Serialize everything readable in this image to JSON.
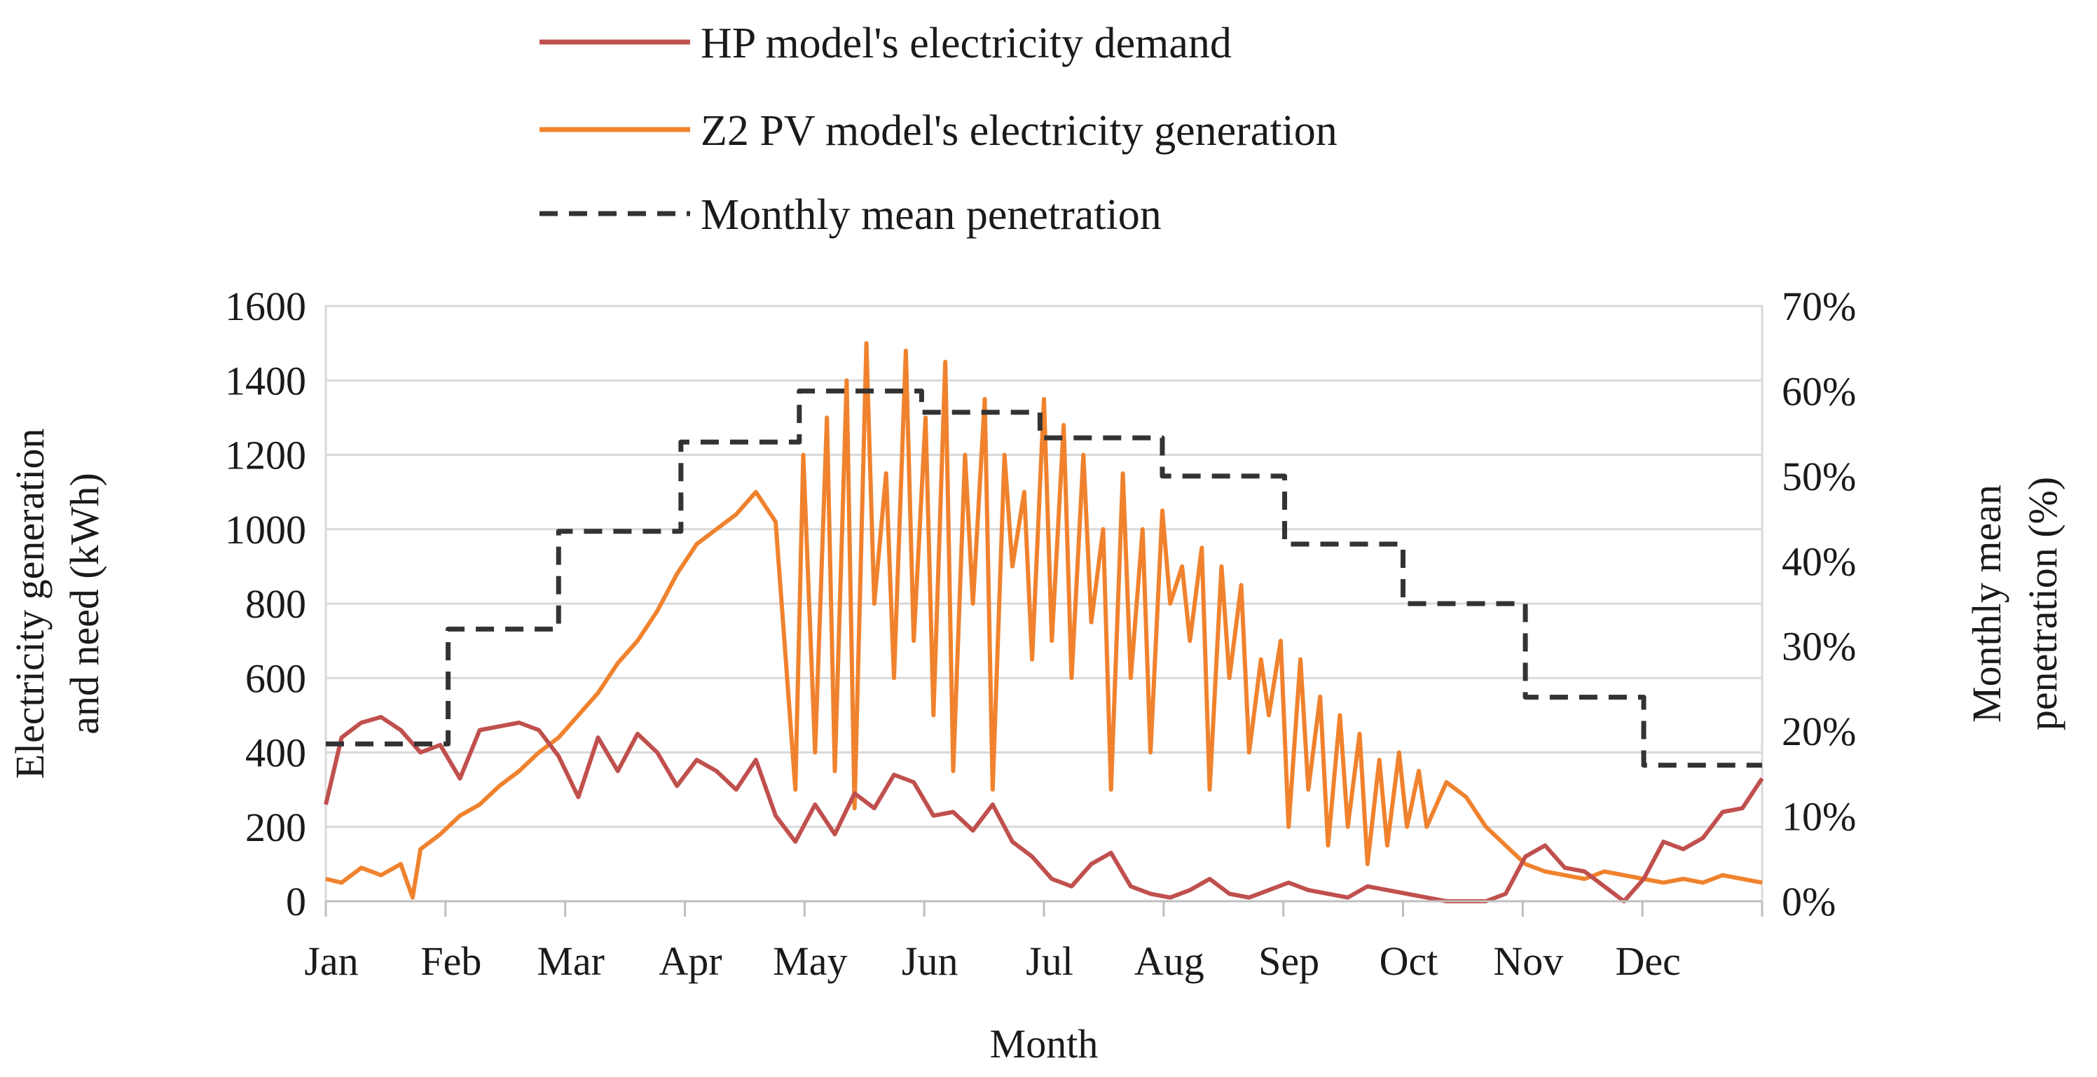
{
  "chart_data": {
    "type": "line",
    "xlabel": "Month",
    "ylabel_lines": [
      "Electricity generation",
      "and need (kWh)"
    ],
    "y2label_lines": [
      "Monthly mean",
      "penetration (%)"
    ],
    "x_tick_labels": [
      "Jan",
      "Feb",
      "Mar",
      "Apr",
      "May",
      "Jun",
      "Jul",
      "Aug",
      "Sep",
      "Oct",
      "Nov",
      "Dec"
    ],
    "ylim": [
      0,
      1600
    ],
    "y_ticks": [
      0,
      200,
      400,
      600,
      800,
      1000,
      1200,
      1400,
      1600
    ],
    "y2lim": [
      0,
      70
    ],
    "y2_ticks": [
      0,
      10,
      20,
      30,
      40,
      50,
      60,
      70
    ],
    "y2_tick_labels": [
      "0%",
      "10%",
      "20%",
      "30%",
      "40%",
      "50%",
      "60%",
      "70%"
    ],
    "grid": "horizontal",
    "legend_position": "top-center",
    "series": [
      {
        "name": "HP model's electricity demand",
        "color": "#c0504d",
        "axis": "left",
        "style": "solid",
        "x": [
          1,
          5,
          10,
          15,
          20,
          25,
          30,
          35,
          40,
          45,
          50,
          55,
          60,
          65,
          70,
          75,
          80,
          85,
          90,
          95,
          100,
          105,
          110,
          115,
          120,
          125,
          130,
          135,
          140,
          145,
          150,
          155,
          160,
          165,
          170,
          175,
          180,
          185,
          190,
          195,
          200,
          205,
          210,
          215,
          220,
          225,
          230,
          235,
          240,
          245,
          250,
          255,
          260,
          265,
          270,
          275,
          280,
          285,
          290,
          295,
          300,
          305,
          310,
          315,
          320,
          325,
          330,
          335,
          340,
          345,
          350,
          355,
          360,
          365
        ],
        "y": [
          260,
          440,
          480,
          495,
          460,
          400,
          420,
          330,
          460,
          470,
          480,
          460,
          390,
          280,
          440,
          350,
          450,
          400,
          310,
          380,
          350,
          300,
          380,
          230,
          160,
          260,
          180,
          290,
          250,
          340,
          320,
          230,
          240,
          190,
          260,
          160,
          120,
          60,
          40,
          100,
          130,
          40,
          20,
          10,
          30,
          60,
          20,
          10,
          30,
          50,
          30,
          20,
          10,
          40,
          30,
          20,
          10,
          0,
          0,
          0,
          20,
          120,
          150,
          90,
          80,
          40,
          0,
          60,
          160,
          140,
          170,
          240,
          250,
          330
        ]
      },
      {
        "name": "Z2 PV model's electricity generation",
        "color": "#f0822d",
        "axis": "left",
        "style": "solid",
        "x": [
          1,
          5,
          10,
          15,
          20,
          23,
          25,
          30,
          35,
          40,
          45,
          50,
          55,
          60,
          65,
          70,
          75,
          80,
          85,
          90,
          95,
          100,
          105,
          110,
          115,
          120,
          122,
          125,
          128,
          130,
          133,
          135,
          138,
          140,
          143,
          145,
          148,
          150,
          153,
          155,
          158,
          160,
          163,
          165,
          168,
          170,
          173,
          175,
          178,
          180,
          183,
          185,
          188,
          190,
          193,
          195,
          198,
          200,
          203,
          205,
          208,
          210,
          213,
          215,
          218,
          220,
          223,
          225,
          228,
          230,
          233,
          235,
          238,
          240,
          243,
          245,
          248,
          250,
          253,
          255,
          258,
          260,
          263,
          265,
          268,
          270,
          273,
          275,
          278,
          280,
          285,
          290,
          295,
          300,
          305,
          310,
          315,
          320,
          325,
          330,
          335,
          340,
          345,
          350,
          355,
          360,
          365
        ],
        "y": [
          60,
          50,
          90,
          70,
          100,
          10,
          140,
          180,
          230,
          260,
          310,
          350,
          400,
          440,
          500,
          560,
          640,
          700,
          780,
          880,
          960,
          1000,
          1040,
          1100,
          1020,
          300,
          1200,
          400,
          1300,
          350,
          1400,
          250,
          1500,
          800,
          1150,
          600,
          1480,
          700,
          1300,
          500,
          1450,
          350,
          1200,
          800,
          1350,
          300,
          1200,
          900,
          1100,
          650,
          1350,
          700,
          1280,
          600,
          1200,
          750,
          1000,
          300,
          1150,
          600,
          1000,
          400,
          1050,
          800,
          900,
          700,
          950,
          300,
          900,
          600,
          850,
          400,
          650,
          500,
          700,
          200,
          650,
          300,
          550,
          150,
          500,
          200,
          450,
          100,
          380,
          150,
          400,
          200,
          350,
          200,
          320,
          280,
          200,
          150,
          100,
          80,
          70,
          60,
          80,
          70,
          60,
          50,
          60,
          50,
          70,
          60,
          50
        ]
      },
      {
        "name": "Monthly mean penetration",
        "color": "#333333",
        "axis": "right",
        "style": "dashed",
        "x": [
          1,
          32,
          60,
          91,
          121,
          152,
          182,
          213,
          244,
          274,
          305,
          335,
          365
        ],
        "y": [
          18.5,
          32,
          43.5,
          54,
          60,
          57.5,
          54.5,
          50,
          42,
          35,
          24,
          16,
          16
        ]
      }
    ]
  }
}
